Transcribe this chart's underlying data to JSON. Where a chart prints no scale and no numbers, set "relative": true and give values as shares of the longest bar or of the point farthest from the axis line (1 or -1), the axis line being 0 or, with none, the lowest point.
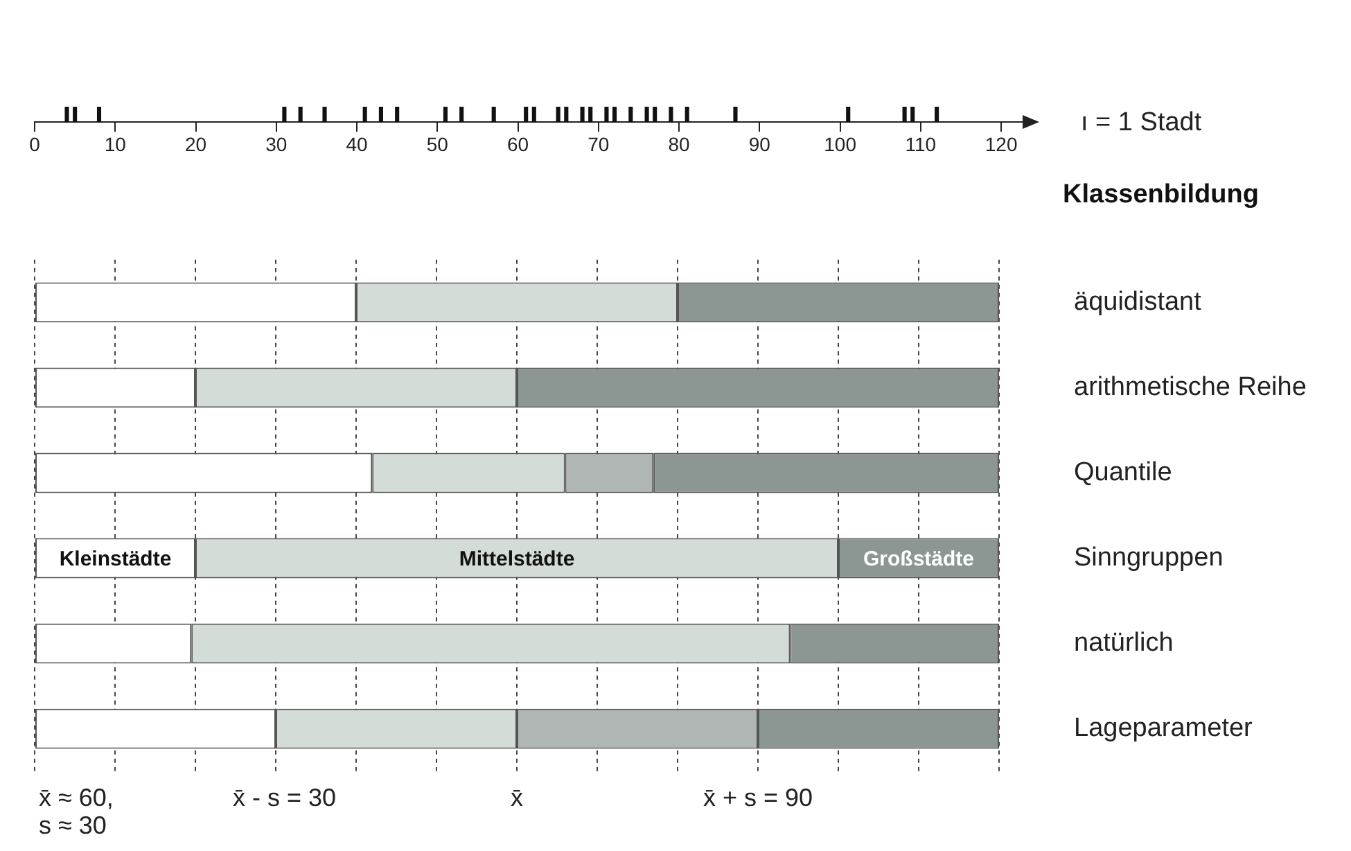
{
  "chart_data": [
    {
      "type": "bar",
      "x": [
        4,
        5,
        8,
        31,
        33,
        36,
        41,
        43,
        45,
        51,
        53,
        57,
        61,
        62,
        65,
        66,
        68,
        69,
        71,
        72,
        74,
        76,
        77,
        79,
        81,
        87,
        101,
        108,
        109,
        112
      ],
      "values": [
        1,
        1,
        1,
        1,
        1,
        1,
        1,
        1,
        1,
        1,
        1,
        1,
        1,
        1,
        1,
        1,
        1,
        1,
        1,
        1,
        1,
        1,
        1,
        1,
        1,
        1,
        1,
        1,
        1,
        1
      ],
      "color": "#111111",
      "xlim": [
        0,
        123
      ],
      "xticks": [
        0,
        10,
        20,
        30,
        40,
        50,
        60,
        70,
        80,
        90,
        100,
        110,
        120
      ],
      "relative": true,
      "tick_labels": "x",
      "annotations": [
        "ı = 1 Stadt"
      ]
    },
    {
      "type": "bar",
      "orientation": "horizontal",
      "stacked": true,
      "ylabel": "Klassenbildung",
      "categories": [
        "äquidistant",
        "arithmetische Reihe",
        "Quantile",
        "Sinngruppen",
        "natürlich",
        "Lageparameter"
      ],
      "series": [
        {
          "color": "#ffffff",
          "values": [
            40,
            20,
            42,
            20,
            19.5,
            30
          ],
          "value_labels": [
            null,
            null,
            null,
            "Kleinstädte",
            null,
            null
          ]
        },
        {
          "color": "#d4dcd8",
          "values": [
            40,
            40,
            24,
            80,
            74.5,
            30
          ],
          "value_labels": [
            null,
            null,
            null,
            "Mittelstädte",
            null,
            null
          ]
        },
        {
          "colors": [
            "#8c9693",
            "#8c9693",
            "#b0b6b3",
            "#8c9693",
            "#8c9693",
            "#b0b6b3"
          ],
          "values": [
            40,
            60,
            11,
            20,
            26,
            30
          ],
          "value_labels": [
            null,
            null,
            null,
            "Großstädte",
            null,
            null
          ]
        },
        {
          "color": "#8c9693",
          "values": [
            null,
            null,
            43,
            null,
            null,
            30
          ]
        }
      ],
      "xlim": [
        0,
        120
      ],
      "xticks": [
        0,
        10,
        20,
        30,
        40,
        50,
        60,
        70,
        80,
        90,
        100,
        110,
        120
      ],
      "grid": "x",
      "tick_labels": "y",
      "annotations": [
        "x̄ ≈ 60,\ns ≈ 30",
        "x̄ - s = 30",
        "x̄",
        "x̄ + s = 90"
      ]
    }
  ]
}
